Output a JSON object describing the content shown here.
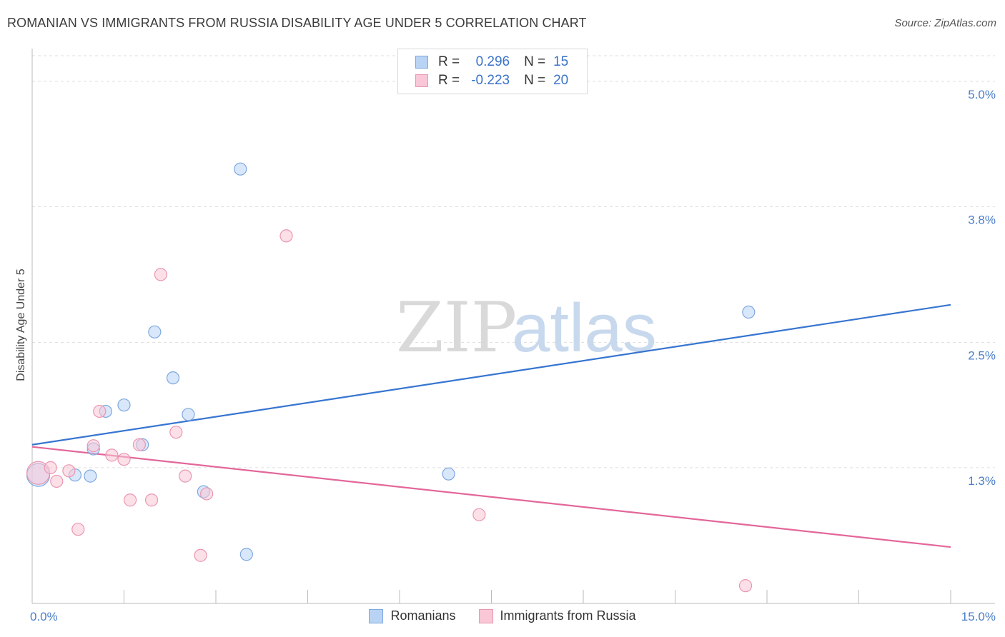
{
  "title": "ROMANIAN VS IMMIGRANTS FROM RUSSIA DISABILITY AGE UNDER 5 CORRELATION CHART",
  "source": "Source: ZipAtlas.com",
  "watermark": {
    "zip": "ZIP",
    "atlas": "atlas"
  },
  "legend": {
    "rows": [
      {
        "r_label": "R =",
        "r_value": "0.296",
        "n_label": "N =",
        "n_value": "15"
      },
      {
        "r_label": "R =",
        "r_value": "-0.223",
        "n_label": "N =",
        "n_value": "20"
      }
    ]
  },
  "colors": {
    "blue_fill": "#b9d3f5",
    "blue_stroke": "#7ea8e0",
    "blue_line": "#3775d0",
    "pink_fill": "#f9c7d6",
    "pink_stroke": "#eb96b0",
    "pink_line": "#e3679a",
    "grid": "#dddddd",
    "tick_text": "#4a7ec8"
  },
  "chart_data": {
    "type": "scatter",
    "title": "ROMANIAN VS IMMIGRANTS FROM RUSSIA DISABILITY AGE UNDER 5 CORRELATION CHART",
    "xlabel": "",
    "ylabel": "Disability Age Under 5",
    "xlim": [
      0,
      15
    ],
    "ylim": [
      0,
      5.3
    ],
    "x_ticks": [
      "0.0%",
      "15.0%"
    ],
    "y_ticks": [
      {
        "value": 1.3,
        "label": "1.3%"
      },
      {
        "value": 2.5,
        "label": "2.5%"
      },
      {
        "value": 3.8,
        "label": "3.8%"
      },
      {
        "value": 5.0,
        "label": "5.0%"
      }
    ],
    "legend_placement": "top-center",
    "series": [
      {
        "name": "Romanians",
        "color": "blue",
        "R": 0.296,
        "N": 15,
        "points": [
          {
            "x": 0.1,
            "y": 1.23,
            "big": true
          },
          {
            "x": 0.7,
            "y": 1.23
          },
          {
            "x": 0.95,
            "y": 1.22
          },
          {
            "x": 1.0,
            "y": 1.48
          },
          {
            "x": 1.2,
            "y": 1.84
          },
          {
            "x": 1.5,
            "y": 1.9
          },
          {
            "x": 1.8,
            "y": 1.52
          },
          {
            "x": 2.0,
            "y": 2.6
          },
          {
            "x": 2.3,
            "y": 2.16
          },
          {
            "x": 2.55,
            "y": 1.81
          },
          {
            "x": 2.8,
            "y": 1.07
          },
          {
            "x": 3.4,
            "y": 4.16
          },
          {
            "x": 3.5,
            "y": 0.47
          },
          {
            "x": 6.8,
            "y": 1.24
          },
          {
            "x": 11.7,
            "y": 2.79
          }
        ],
        "trend": {
          "x": [
            0,
            15
          ],
          "y": [
            1.52,
            2.86
          ]
        }
      },
      {
        "name": "Immigrants from Russia",
        "color": "pink",
        "R": -0.223,
        "N": 20,
        "points": [
          {
            "x": 0.1,
            "y": 1.25,
            "big": true
          },
          {
            "x": 0.3,
            "y": 1.3
          },
          {
            "x": 0.4,
            "y": 1.17
          },
          {
            "x": 0.6,
            "y": 1.27
          },
          {
            "x": 0.75,
            "y": 0.71
          },
          {
            "x": 1.0,
            "y": 1.51
          },
          {
            "x": 1.1,
            "y": 1.84
          },
          {
            "x": 1.3,
            "y": 1.42
          },
          {
            "x": 1.5,
            "y": 1.38
          },
          {
            "x": 1.6,
            "y": 0.99
          },
          {
            "x": 1.75,
            "y": 1.52
          },
          {
            "x": 1.95,
            "y": 0.99
          },
          {
            "x": 2.1,
            "y": 3.15
          },
          {
            "x": 2.35,
            "y": 1.64
          },
          {
            "x": 2.5,
            "y": 1.22
          },
          {
            "x": 2.75,
            "y": 0.46
          },
          {
            "x": 2.85,
            "y": 1.05
          },
          {
            "x": 4.15,
            "y": 3.52
          },
          {
            "x": 7.3,
            "y": 0.85
          },
          {
            "x": 11.65,
            "y": 0.17
          }
        ],
        "trend": {
          "x": [
            0,
            15
          ],
          "y": [
            1.5,
            0.54
          ]
        }
      }
    ]
  },
  "bottom_legend": [
    {
      "label": "Romanians",
      "color": "blue"
    },
    {
      "label": "Immigrants from Russia",
      "color": "pink"
    }
  ]
}
